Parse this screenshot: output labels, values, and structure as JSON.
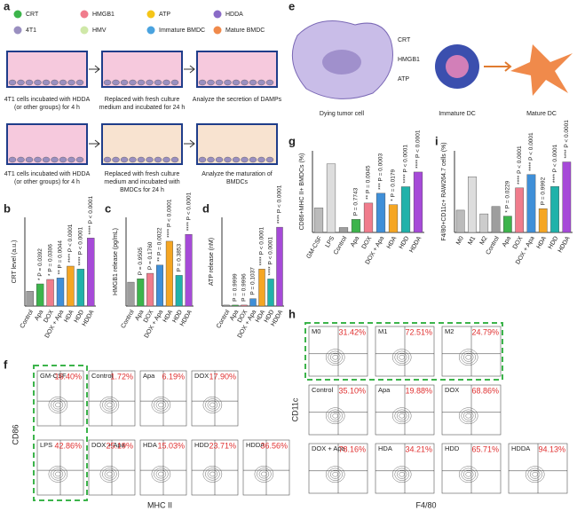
{
  "legend": {
    "panel": "a",
    "items": [
      "CRT",
      "HMGB1",
      "ATP",
      "HDDA",
      "4T1",
      "HMV",
      "Immature BMDC",
      "Mature BMDC"
    ]
  },
  "schematic": {
    "captions": [
      "4T1 cells incubated with HDDA (or other groups) for 4 h",
      "Replaced with fresh culture medium and incubated for 24 h",
      "Analyze the secretion of DAMPs",
      "4T1 cells incubated with HDDA (or other groups) for 4 h",
      "Replaced with fresh culture medium and incubated with BMDCs for 24 h",
      "Analyze the maturation of BMDCs"
    ]
  },
  "diagram_e": {
    "panel": "e",
    "labels": [
      "CRT",
      "HMGB1",
      "ATP"
    ],
    "nodes": [
      "Dying tumor cell",
      "Immature DC",
      "Mature DC"
    ]
  },
  "chart_data": [
    {
      "type": "bar",
      "panel": "b",
      "y_label": "CRT level (a.u.)",
      "categories": [
        "Control",
        "Apa",
        "DOX",
        "DOX + Apa",
        "HDA",
        "HDD",
        "HDDA"
      ],
      "values": [
        10,
        15,
        18,
        19,
        27,
        25,
        46
      ],
      "colors": [
        "#9e9e9e",
        "#3cb44b",
        "#f07c8c",
        "#3f8fd8",
        "#f5a623",
        "#20b2aa",
        "#a64ad8"
      ],
      "ylim": [
        0,
        60
      ],
      "annotations": [
        null,
        "* P = 0.0392",
        "* P = 0.0306",
        "** P = 0.0044",
        "**** P < 0.0001",
        "**** P < 0.0001",
        "**** P < 0.0001"
      ]
    },
    {
      "type": "bar",
      "panel": "c",
      "y_label": "HMGB1 release (pg/mL)",
      "categories": [
        "Control",
        "Apa",
        "DOX",
        "DOX + Apa",
        "HDA",
        "HDD",
        "HDDA"
      ],
      "values": [
        35,
        40,
        48,
        60,
        95,
        45,
        105
      ],
      "colors": [
        "#9e9e9e",
        "#3cb44b",
        "#f07c8c",
        "#3f8fd8",
        "#f5a623",
        "#20b2aa",
        "#a64ad8"
      ],
      "ylim": [
        0,
        130
      ],
      "annotations": [
        null,
        "P = 0.9505",
        "P = 0.1760",
        "** P = 0.0022",
        "**** P < 0.0001",
        "P = 0.3853",
        "**** P < 0.0001"
      ]
    },
    {
      "type": "bar",
      "panel": "d",
      "y_label": "ATP release (nM)",
      "categories": [
        "Control",
        "Apa",
        "DOX",
        "DOX + Apa",
        "HDA",
        "HDD",
        "HDDA"
      ],
      "values": [
        2,
        2,
        2,
        15,
        75,
        55,
        160
      ],
      "colors": [
        "#9e9e9e",
        "#3cb44b",
        "#f07c8c",
        "#3f8fd8",
        "#f5a623",
        "#20b2aa",
        "#a64ad8"
      ],
      "ylim": [
        0,
        180
      ],
      "annotations": [
        null,
        "P = 0.9999",
        "P = 0.9996",
        "P = 0.1037",
        "**** P < 0.0001",
        "**** P < 0.0001",
        "**** P < 0.0001"
      ]
    },
    {
      "type": "bar",
      "panel": "g",
      "y_label": "CD86+MHC II+ BMDCs (%)",
      "categories": [
        "GM-CSF",
        "LPS",
        "Control",
        "Apa",
        "DOX",
        "DOX + Apa",
        "HDA",
        "HDD",
        "HDDA"
      ],
      "values": [
        15,
        42,
        3,
        8,
        18,
        24,
        17,
        28,
        37
      ],
      "colors": [
        "#bbbbbb",
        "#dddddd",
        "#9e9e9e",
        "#3cb44b",
        "#f07c8c",
        "#3f8fd8",
        "#f5a623",
        "#20b2aa",
        "#a64ad8"
      ],
      "ylim": [
        0,
        50
      ],
      "annotations": [
        null,
        null,
        null,
        "P = 0.7743",
        "** P = 0.0045",
        "*** P = 0.0003",
        "* P = 0.0179",
        "**** P < 0.0001",
        "**** P < 0.0001"
      ]
    },
    {
      "type": "bar",
      "panel": "i",
      "y_label": "F4/80+CD11c+ RAW264.7 cells (%)",
      "categories": [
        "M0",
        "M1",
        "M2",
        "Control",
        "Apa",
        "DOX",
        "DOX + Apa",
        "HDA",
        "HDD",
        "HDDA"
      ],
      "values": [
        30,
        75,
        25,
        35,
        22,
        60,
        78,
        32,
        62,
        95
      ],
      "colors": [
        "#bbbbbb",
        "#dddddd",
        "#cccccc",
        "#9e9e9e",
        "#3cb44b",
        "#f07c8c",
        "#3f8fd8",
        "#f5a623",
        "#20b2aa",
        "#a64ad8"
      ],
      "ylim": [
        0,
        110
      ],
      "annotations": [
        null,
        null,
        null,
        null,
        "* P = 0.0229",
        "**** P < 0.0001",
        "**** P < 0.0001",
        "P = 0.9992",
        "**** P < 0.0001",
        "**** P < 0.0001"
      ]
    }
  ],
  "flow_panels": [
    {
      "panel": "f",
      "x_label": "MHC II",
      "y_label": "CD86",
      "plots": [
        {
          "label": "GM-CSF",
          "percent": "16.40%"
        },
        {
          "label": "Control",
          "percent": "1.72%"
        },
        {
          "label": "Apa",
          "percent": "6.19%"
        },
        {
          "label": "DOX",
          "percent": "17.90%"
        },
        {
          "label": "LPS",
          "percent": "42.86%"
        },
        {
          "label": "DOX + Apa",
          "percent": "25.19%"
        },
        {
          "label": "HDA",
          "percent": "15.03%"
        },
        {
          "label": "HDD",
          "percent": "23.71%"
        },
        {
          "label": "HDDA",
          "percent": "36.56%"
        }
      ]
    },
    {
      "panel": "h",
      "x_label": "F4/80",
      "y_label": "CD11c",
      "plots": [
        {
          "label": "M0",
          "percent": "31.42%"
        },
        {
          "label": "M1",
          "percent": "72.51%"
        },
        {
          "label": "M2",
          "percent": "24.79%"
        },
        {
          "label": "Control",
          "percent": "35.10%"
        },
        {
          "label": "Apa",
          "percent": "19.88%"
        },
        {
          "label": "DOX",
          "percent": "68.86%"
        },
        {
          "label": "DOX + Apa",
          "percent": "78.16%"
        },
        {
          "label": "HDA",
          "percent": "34.21%"
        },
        {
          "label": "HDD",
          "percent": "65.71%"
        },
        {
          "label": "HDDA",
          "percent": "94.13%"
        }
      ]
    }
  ]
}
